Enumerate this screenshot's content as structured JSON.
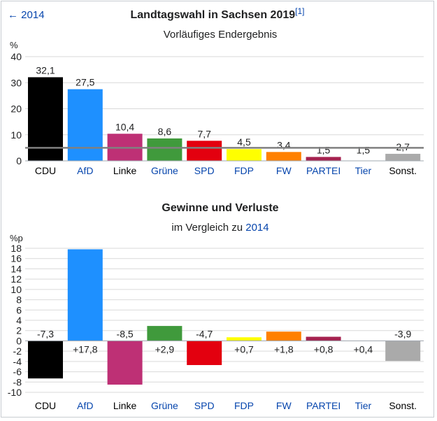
{
  "back_link": "← 2014",
  "colors": {
    "link": "#0645ad",
    "grid": "#d9d9d9",
    "threshold": "#808080"
  },
  "chart_data": [
    {
      "type": "bar",
      "title": "Landtagswahl in Sachsen 2019",
      "title_ref": "[1]",
      "subtitle": "Vorläufiges Endergebnis",
      "ylabel": "%",
      "ylim": [
        0,
        40
      ],
      "yticks": [
        0,
        10,
        20,
        30,
        40
      ],
      "threshold": 5,
      "categories": [
        "CDU",
        "AfD",
        "Linke",
        "Grüne",
        "SPD",
        "FDP",
        "FW",
        "PARTEI",
        "Tier",
        "Sonst."
      ],
      "category_colors": [
        "#000000",
        "#1e90ff",
        "#be3075",
        "#409a3c",
        "#e3000f",
        "#ffff00",
        "#ff8000",
        "#a5224f",
        "#ffffff",
        "#aaaaaa"
      ],
      "category_label_colors": [
        "#000000",
        "#0645ad",
        "#000000",
        "#0645ad",
        "#0645ad",
        "#0645ad",
        "#0645ad",
        "#0645ad",
        "#0645ad",
        "#000000"
      ],
      "values": [
        32.1,
        27.5,
        10.4,
        8.6,
        7.7,
        4.5,
        3.4,
        1.5,
        1.5,
        2.7
      ],
      "value_labels": [
        "32,1",
        "27,5",
        "10,4",
        "8,6",
        "7,7",
        "4,5",
        "3,4",
        "1,5",
        "1,5",
        "2,7"
      ]
    },
    {
      "type": "bar",
      "title": "Gewinne und Verluste",
      "subtitle_prefix": "im Vergleich zu",
      "subtitle_link": "2014",
      "ylabel": "%p",
      "ylim": [
        -10,
        18
      ],
      "yticks": [
        -10,
        -8,
        -6,
        -4,
        -2,
        0,
        2,
        4,
        6,
        8,
        10,
        12,
        14,
        16,
        18
      ],
      "categories": [
        "CDU",
        "AfD",
        "Linke",
        "Grüne",
        "SPD",
        "FDP",
        "FW",
        "PARTEI",
        "Tier",
        "Sonst."
      ],
      "values": [
        -7.3,
        17.8,
        -8.5,
        2.9,
        -4.7,
        0.7,
        1.8,
        0.8,
        0.4,
        -3.9
      ],
      "value_labels": [
        "-7,3",
        "+17,8",
        "-8,5",
        "+2,9",
        "-4,7",
        "+0,7",
        "+1,8",
        "+0,8",
        "+0,4",
        "-3,9"
      ]
    }
  ]
}
